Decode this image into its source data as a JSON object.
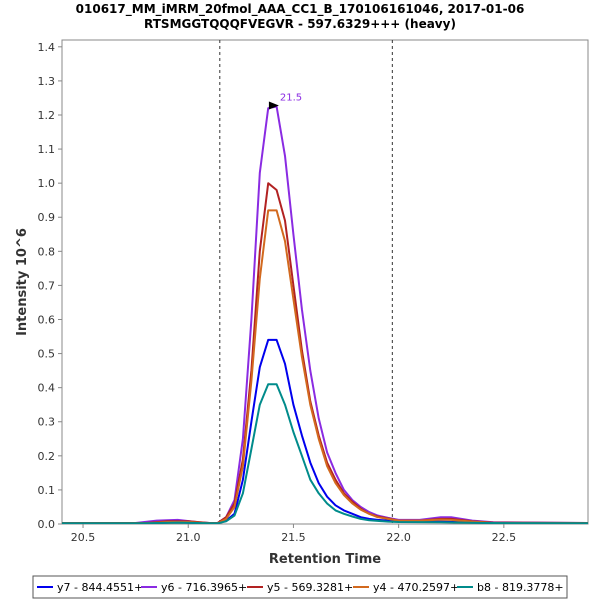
{
  "chart_data": {
    "type": "line",
    "title": "010617_MM_iMRM_20fmol_AAA_CC1_B_170106161046, 2017-01-06",
    "subtitle": "RTSMGGTQQQFVEGVR - 597.6329+++ (heavy)",
    "xlabel": "Retention Time",
    "ylabel": "Intensity 10^6",
    "xlim": [
      20.4,
      22.9
    ],
    "ylim": [
      0,
      1.42
    ],
    "xticks": [
      "20.5",
      "21.0",
      "21.5",
      "22.0",
      "22.5"
    ],
    "yticks": [
      "0.0",
      "0.1",
      "0.2",
      "0.3",
      "0.4",
      "0.5",
      "0.6",
      "0.7",
      "0.8",
      "0.9",
      "1.0",
      "1.1",
      "1.2",
      "1.3",
      "1.4"
    ],
    "integration_bounds": [
      21.15,
      21.97
    ],
    "peak_annotation": {
      "x": 21.45,
      "y": 1.225,
      "label": "21.5"
    },
    "legend_position": "bottom",
    "series": [
      {
        "name": "y7 - 844.4551+",
        "color": "#0000ee",
        "x": [
          20.4,
          20.8,
          20.95,
          21.1,
          21.14,
          21.18,
          21.22,
          21.26,
          21.3,
          21.34,
          21.38,
          21.42,
          21.46,
          21.5,
          21.54,
          21.58,
          21.62,
          21.66,
          21.7,
          21.74,
          21.78,
          21.82,
          21.86,
          21.9,
          21.95,
          22.0,
          22.2,
          22.4,
          22.9
        ],
        "values": [
          0.002,
          0.002,
          0.005,
          0.002,
          0.002,
          0.01,
          0.03,
          0.13,
          0.3,
          0.46,
          0.54,
          0.54,
          0.47,
          0.35,
          0.26,
          0.18,
          0.12,
          0.08,
          0.055,
          0.04,
          0.03,
          0.02,
          0.015,
          0.012,
          0.01,
          0.008,
          0.007,
          0.004,
          0.002
        ]
      },
      {
        "name": "y6 - 716.3965+",
        "color": "#8a2be2",
        "x": [
          20.4,
          20.75,
          20.85,
          20.95,
          21.05,
          21.1,
          21.14,
          21.18,
          21.22,
          21.26,
          21.3,
          21.34,
          21.38,
          21.42,
          21.46,
          21.5,
          21.54,
          21.58,
          21.62,
          21.66,
          21.7,
          21.74,
          21.78,
          21.82,
          21.86,
          21.9,
          21.95,
          22.0,
          22.1,
          22.2,
          22.25,
          22.35,
          22.45,
          22.9
        ],
        "values": [
          0.003,
          0.003,
          0.01,
          0.012,
          0.005,
          0.003,
          0.003,
          0.02,
          0.07,
          0.25,
          0.6,
          1.03,
          1.22,
          1.225,
          1.08,
          0.85,
          0.63,
          0.45,
          0.31,
          0.21,
          0.15,
          0.1,
          0.07,
          0.05,
          0.035,
          0.025,
          0.018,
          0.012,
          0.012,
          0.02,
          0.02,
          0.01,
          0.005,
          0.003
        ]
      },
      {
        "name": "y5 - 569.3281+",
        "color": "#b22222",
        "x": [
          20.4,
          20.8,
          20.9,
          21.0,
          21.1,
          21.14,
          21.18,
          21.22,
          21.26,
          21.3,
          21.34,
          21.38,
          21.42,
          21.46,
          21.5,
          21.54,
          21.58,
          21.62,
          21.66,
          21.7,
          21.74,
          21.78,
          21.82,
          21.86,
          21.9,
          21.95,
          22.0,
          22.1,
          22.2,
          22.25,
          22.35,
          22.45,
          22.9
        ],
        "values": [
          0.003,
          0.003,
          0.008,
          0.008,
          0.003,
          0.003,
          0.02,
          0.06,
          0.19,
          0.45,
          0.8,
          1.0,
          0.98,
          0.89,
          0.7,
          0.51,
          0.36,
          0.26,
          0.18,
          0.13,
          0.09,
          0.065,
          0.045,
          0.03,
          0.022,
          0.016,
          0.01,
          0.01,
          0.015,
          0.015,
          0.008,
          0.004,
          0.003
        ]
      },
      {
        "name": "y4 - 470.2597+",
        "color": "#d2691e",
        "x": [
          20.4,
          20.8,
          20.9,
          21.0,
          21.1,
          21.14,
          21.18,
          21.22,
          21.26,
          21.3,
          21.34,
          21.38,
          21.42,
          21.46,
          21.5,
          21.54,
          21.58,
          21.62,
          21.66,
          21.7,
          21.74,
          21.78,
          21.82,
          21.86,
          21.9,
          21.95,
          22.0,
          22.1,
          22.2,
          22.25,
          22.35,
          22.45,
          22.9
        ],
        "values": [
          0.002,
          0.002,
          0.006,
          0.006,
          0.002,
          0.002,
          0.015,
          0.05,
          0.17,
          0.42,
          0.72,
          0.92,
          0.92,
          0.83,
          0.66,
          0.49,
          0.35,
          0.25,
          0.17,
          0.12,
          0.085,
          0.06,
          0.042,
          0.03,
          0.02,
          0.015,
          0.01,
          0.01,
          0.013,
          0.012,
          0.007,
          0.003,
          0.002
        ]
      },
      {
        "name": "b8 - 819.3778+",
        "color": "#008b8b",
        "x": [
          20.4,
          20.8,
          20.95,
          21.1,
          21.14,
          21.18,
          21.22,
          21.26,
          21.3,
          21.34,
          21.38,
          21.42,
          21.46,
          21.5,
          21.54,
          21.58,
          21.62,
          21.66,
          21.7,
          21.74,
          21.78,
          21.82,
          21.86,
          21.9,
          21.95,
          22.0,
          22.2,
          22.4,
          22.9
        ],
        "values": [
          0.002,
          0.002,
          0.004,
          0.002,
          0.002,
          0.008,
          0.025,
          0.09,
          0.22,
          0.35,
          0.41,
          0.41,
          0.35,
          0.27,
          0.2,
          0.13,
          0.09,
          0.06,
          0.04,
          0.03,
          0.022,
          0.015,
          0.011,
          0.009,
          0.007,
          0.006,
          0.005,
          0.003,
          0.002
        ]
      }
    ]
  }
}
